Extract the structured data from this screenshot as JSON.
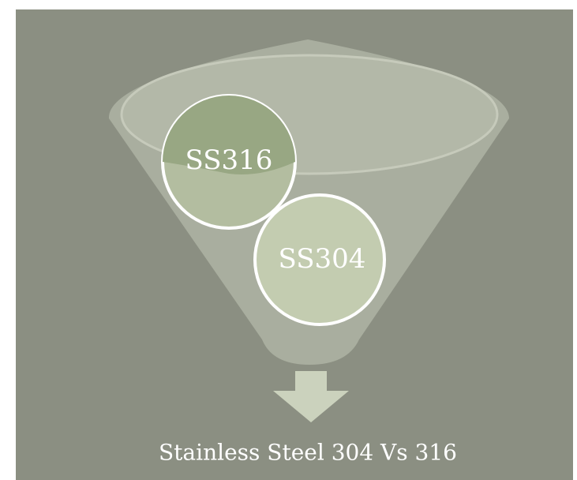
{
  "nodes": [
    {
      "label": "SS316"
    },
    {
      "label": "SS304"
    }
  ],
  "caption": "Stainless Steel 304 Vs 316"
}
